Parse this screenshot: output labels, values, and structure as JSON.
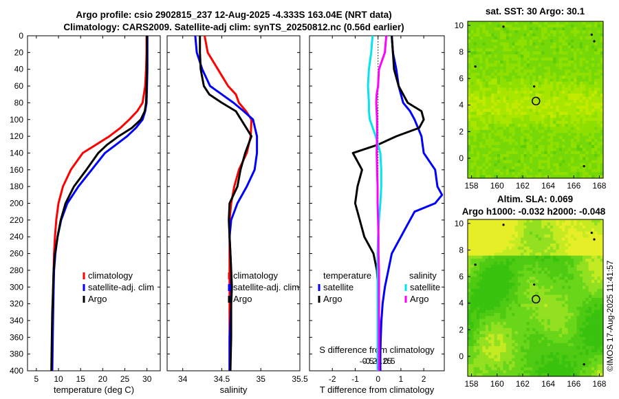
{
  "titles": {
    "line1": "Argo profile: csio 2902815_237 12-Aug-2025 -4.333S 163.04E (NRT data)",
    "line2": "Climatology: CARS2009. Satellite-adj clim: synTS_20250812.nc (0.56d earlier)",
    "sst_title": "sat. SST: 30 Argo: 30.1",
    "sla_title1": "Altim. SLA: 0.069",
    "sla_title2": "Argo h1000: -0.032 h2000: -0.048"
  },
  "copyright": "©IMOS 17-Aug-2025 11:41:57",
  "colors": {
    "climatology": "#ff0000",
    "satellite": "#0000ff",
    "argo": "#000000",
    "sat_sal": "#00e5ee",
    "argo_sal": "#ff00ff"
  },
  "chart_data": [
    {
      "type": "line",
      "name": "temperature",
      "xlabel": "temperature (deg C)",
      "xlim": [
        3,
        33
      ],
      "ylim": [
        0,
        400
      ],
      "xticks": [
        5,
        10,
        15,
        20,
        25,
        30
      ],
      "yticks": [
        0,
        20,
        40,
        60,
        80,
        100,
        120,
        140,
        160,
        180,
        200,
        220,
        240,
        260,
        280,
        300,
        320,
        340,
        360,
        380,
        400
      ],
      "legend": [
        "climatology",
        "satellite-adj. clim",
        "Argo"
      ],
      "series": [
        {
          "name": "climatology",
          "color": "#ff0000",
          "x": [
            29.9,
            29.9,
            29.8,
            29.6,
            29.0,
            27.8,
            26.0,
            24.0,
            21.5,
            18.5,
            15.5,
            12.8,
            11.0,
            10.0,
            9.5,
            9.2,
            9.0,
            8.9,
            8.8,
            8.7,
            8.6,
            8.5
          ],
          "y": [
            0,
            20,
            40,
            60,
            80,
            90,
            100,
            110,
            120,
            130,
            140,
            160,
            180,
            200,
            220,
            240,
            260,
            280,
            300,
            330,
            360,
            400
          ]
        },
        {
          "name": "satellite-adj. clim",
          "color": "#0000ff",
          "x": [
            30.1,
            30.1,
            30.1,
            30.0,
            29.9,
            29.6,
            29.0,
            27.5,
            25.5,
            23.0,
            20.5,
            17.5,
            14.5,
            12.0,
            10.6,
            9.8,
            9.3,
            9.0,
            8.9,
            8.8,
            8.7,
            8.6
          ],
          "y": [
            0,
            20,
            40,
            60,
            80,
            90,
            100,
            110,
            120,
            130,
            140,
            160,
            180,
            200,
            220,
            240,
            260,
            280,
            300,
            330,
            360,
            400
          ]
        },
        {
          "name": "Argo",
          "color": "#000000",
          "x": [
            30.0,
            30.0,
            30.0,
            29.9,
            29.8,
            29.5,
            28.6,
            26.6,
            23.6,
            21.0,
            19.0,
            16.3,
            13.5,
            11.6,
            10.5,
            9.8,
            9.2,
            8.9,
            8.8,
            8.6,
            8.5,
            8.4
          ],
          "y": [
            0,
            20,
            40,
            60,
            80,
            90,
            100,
            110,
            120,
            130,
            140,
            160,
            180,
            200,
            220,
            240,
            260,
            280,
            300,
            330,
            360,
            400
          ]
        }
      ]
    },
    {
      "type": "line",
      "name": "salinity",
      "xlabel": "salinity",
      "xlim": [
        33.8,
        35.5
      ],
      "ylim": [
        0,
        400
      ],
      "xticks": [
        34,
        34.5,
        35,
        35.5
      ],
      "legend": [
        "climatology",
        "satellite-adj. clim",
        "Argo"
      ],
      "series": [
        {
          "name": "climatology",
          "color": "#ff0000",
          "x": [
            34.28,
            34.32,
            34.45,
            34.58,
            34.68,
            34.72,
            34.81,
            34.88,
            34.87,
            34.82,
            34.72,
            34.66,
            34.62,
            34.6,
            34.6,
            34.6,
            34.6,
            34.6,
            34.6,
            34.6,
            34.6,
            34.6
          ],
          "y": [
            0,
            20,
            40,
            60,
            70,
            80,
            90,
            100,
            120,
            140,
            160,
            180,
            200,
            220,
            240,
            260,
            280,
            300,
            320,
            340,
            360,
            400
          ]
        },
        {
          "name": "satellite-adj. clim",
          "color": "#0000ff",
          "x": [
            34.16,
            34.18,
            34.25,
            34.35,
            34.5,
            34.65,
            34.78,
            34.9,
            34.95,
            34.95,
            34.92,
            34.82,
            34.7,
            34.62,
            34.6,
            34.61,
            34.62,
            34.62,
            34.62,
            34.61,
            34.6,
            34.6
          ],
          "y": [
            0,
            20,
            40,
            60,
            70,
            80,
            90,
            100,
            120,
            140,
            160,
            180,
            200,
            220,
            240,
            260,
            280,
            300,
            320,
            340,
            360,
            400
          ]
        },
        {
          "name": "Argo",
          "color": "#000000",
          "x": [
            34.22,
            34.22,
            34.23,
            34.27,
            34.34,
            34.5,
            34.68,
            34.78,
            34.88,
            34.8,
            34.74,
            34.7,
            34.6,
            34.59,
            34.6,
            34.61,
            34.62,
            34.63,
            34.62,
            34.62,
            34.62,
            34.61
          ],
          "y": [
            0,
            20,
            40,
            60,
            70,
            80,
            90,
            105,
            120,
            140,
            160,
            180,
            200,
            220,
            240,
            260,
            280,
            300,
            320,
            340,
            360,
            400
          ]
        }
      ]
    },
    {
      "type": "line",
      "name": "difference",
      "xlabel": "T difference from climatology",
      "xlabel_top": "S difference from climatology",
      "xlim": [
        -3,
        2.9
      ],
      "ylim": [
        0,
        400
      ],
      "xticks": [
        -2,
        -1,
        0,
        1,
        2
      ],
      "xticks_top": [
        -0.5,
        -0.25,
        0,
        0.25,
        0.5
      ],
      "xticks_top_labels": [
        "-0.5",
        "-0.25",
        "0",
        "0.25",
        "0.5"
      ],
      "legend_titles": [
        "temperature",
        "salinity"
      ],
      "legend": [
        "satellite",
        "Argo",
        "satellite",
        "Argo"
      ],
      "series": [
        {
          "name": "temperature satellite",
          "color": "#0000ff",
          "x": [
            0.6,
            0.65,
            0.8,
            0.9,
            1.1,
            1.4,
            1.6,
            1.75,
            1.9,
            2.0,
            2.5,
            2.6,
            2.8,
            2.5,
            1.6,
            1.2,
            0.6,
            0.3,
            0.2,
            0.15,
            0.12,
            0.1,
            0.1
          ],
          "y": [
            0,
            20,
            40,
            60,
            80,
            90,
            100,
            110,
            120,
            140,
            160,
            180,
            190,
            200,
            210,
            230,
            260,
            300,
            320,
            340,
            360,
            380,
            400
          ]
        },
        {
          "name": "temperature Argo",
          "color": "#000000",
          "x": [
            0.6,
            0.65,
            0.7,
            0.9,
            1.3,
            1.9,
            2.0,
            1.8,
            0.8,
            0.0,
            -1.1,
            -0.7,
            -0.9,
            -1.0,
            -0.8,
            -0.6,
            -0.2,
            -0.05,
            0.0,
            0.02,
            0.05,
            0.05,
            0.05
          ],
          "y": [
            0,
            20,
            40,
            60,
            80,
            90,
            100,
            110,
            120,
            130,
            140,
            160,
            180,
            200,
            220,
            240,
            260,
            280,
            300,
            320,
            340,
            360,
            400
          ]
        },
        {
          "name": "salinity satellite",
          "color": "#00e5ee",
          "x": [
            -0.12,
            -0.15,
            -0.2,
            -0.22,
            -0.21,
            -0.2,
            -0.2,
            -0.18,
            -0.05,
            0.05,
            0.07,
            0.07,
            0.05,
            0.02,
            0.0,
            -0.01,
            -0.01,
            -0.01,
            -0.01,
            -0.01
          ],
          "y": [
            0,
            20,
            40,
            60,
            70,
            80,
            90,
            100,
            120,
            140,
            160,
            180,
            200,
            220,
            240,
            260,
            280,
            300,
            340,
            400
          ]
        },
        {
          "name": "salinity Argo",
          "color": "#ff00ff",
          "x": [
            0.18,
            0.15,
            0.02,
            0.0,
            -0.03,
            -0.04,
            -0.03,
            -0.02,
            -0.02,
            -0.03,
            -0.02,
            -0.01,
            -0.01,
            0.0,
            0.01,
            0.01,
            0.02,
            0.02,
            0.02
          ],
          "y": [
            0,
            20,
            40,
            60,
            70,
            80,
            90,
            100,
            120,
            140,
            160,
            180,
            200,
            220,
            240,
            260,
            280,
            300,
            400
          ]
        }
      ]
    },
    {
      "type": "heatmap",
      "name": "sat-sst-map",
      "title": "sat. SST: 30 Argo: 30.1",
      "xlim": [
        157.7,
        168.3
      ],
      "ylim": [
        -1.5,
        10.3
      ],
      "xticks": [
        158,
        160,
        162,
        164,
        166,
        168
      ],
      "yticks": [
        0,
        2,
        4,
        6,
        8,
        10
      ],
      "marker": {
        "lon": 163.04,
        "lat": 4.3
      },
      "palette": [
        "#5fce0a",
        "#77d808",
        "#8fe000",
        "#a8e600",
        "#c2ea00"
      ]
    },
    {
      "type": "heatmap",
      "name": "altim-sla-map",
      "title": "Altim. SLA: 0.069",
      "xlim": [
        157.7,
        168.3
      ],
      "ylim": [
        -1.5,
        10.3
      ],
      "xticks": [
        158,
        160,
        162,
        164,
        166,
        168
      ],
      "yticks": [
        0,
        2,
        4,
        6,
        8,
        10
      ],
      "marker": {
        "lon": 163.04,
        "lat": 4.3
      },
      "palette": [
        "#39c20e",
        "#4fca12",
        "#6ad61a",
        "#93e020",
        "#c4ea22",
        "#e6ee28"
      ]
    }
  ]
}
